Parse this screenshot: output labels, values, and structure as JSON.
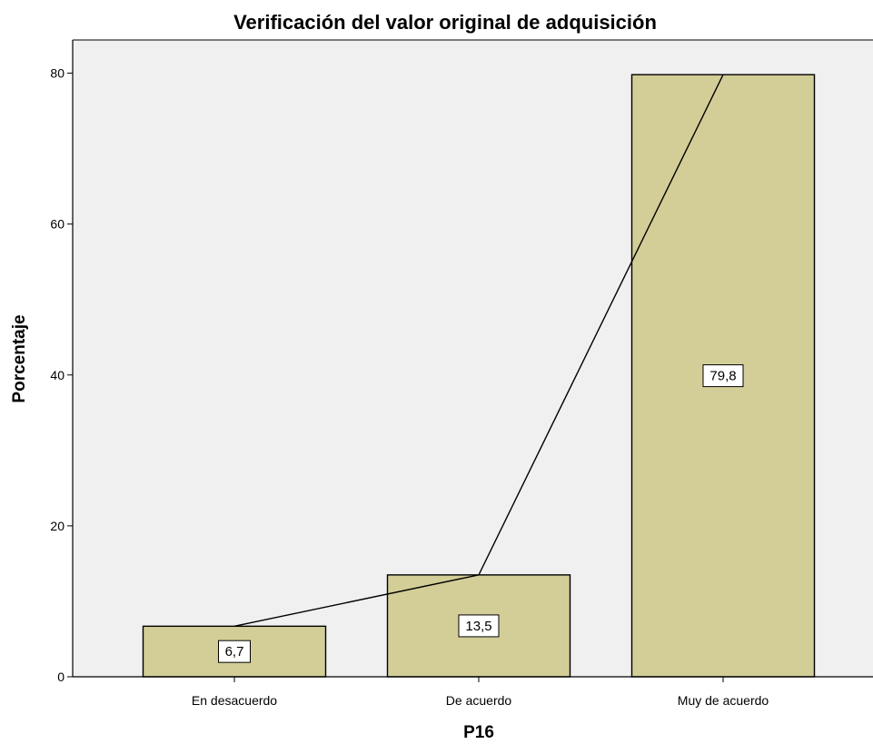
{
  "chart_data": {
    "type": "bar",
    "title": "Verificación del valor original de adquisición",
    "xlabel": "P16",
    "ylabel": "Porcentaje",
    "categories": [
      "En desacuerdo",
      "De acuerdo",
      "Muy de acuerdo"
    ],
    "values": [
      6.7,
      13.5,
      79.8
    ],
    "data_labels": [
      "6,7",
      "13,5",
      "79,8"
    ],
    "y_ticks": [
      0,
      20,
      40,
      60,
      80
    ],
    "y_tick_labels": [
      "0",
      "20",
      "40",
      "60",
      "80"
    ],
    "ylim": [
      0,
      84.4
    ],
    "overlay_line": true,
    "grid": false,
    "colors": {
      "bar_fill": "#d3ce97",
      "plot_background": "#f0f0f0",
      "line": "#000000"
    }
  }
}
